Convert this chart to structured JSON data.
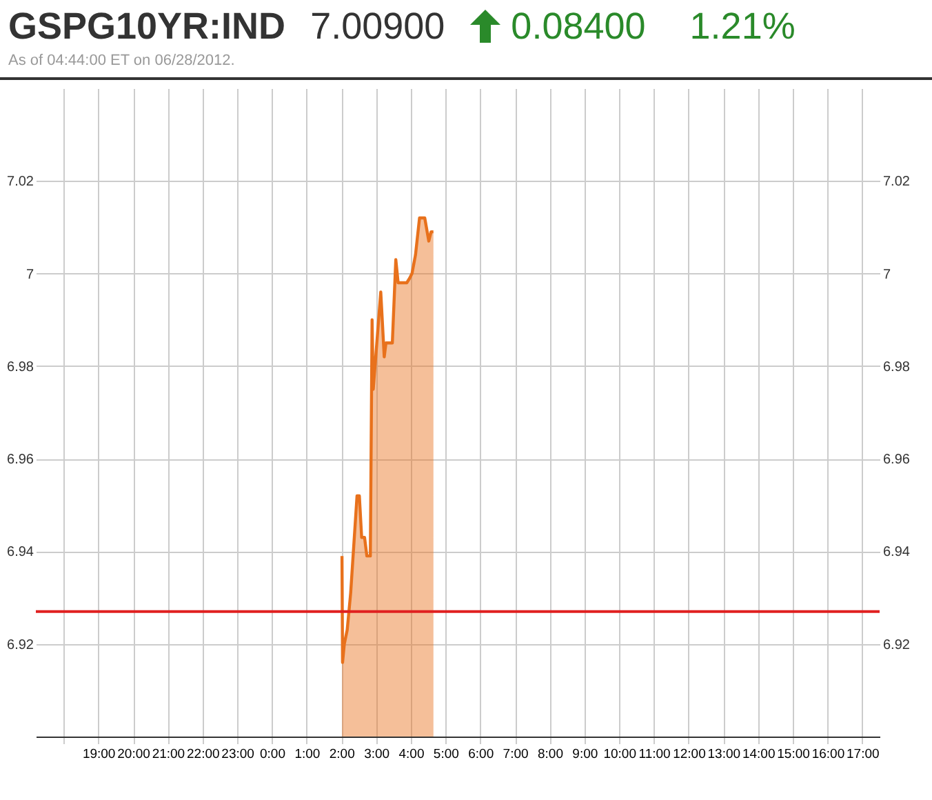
{
  "chart_data": {
    "type": "area",
    "title": "GSPG10YR:IND",
    "subtitle": "As of 04:44:00 ET on 06/28/2012.",
    "annotations": [
      "7.00900",
      "0.08400",
      "1.21%"
    ],
    "series": [
      {
        "color": "#e8711c",
        "x": [
          "2012-06-28T02:01",
          "2012-06-28T02:02",
          "2012-06-28T02:05",
          "2012-06-28T02:10",
          "2012-06-28T02:16",
          "2012-06-28T02:27",
          "2012-06-28T02:31",
          "2012-06-28T02:35",
          "2012-06-28T02:40",
          "2012-06-28T02:44",
          "2012-06-28T02:50",
          "2012-06-28T02:53",
          "2012-06-28T02:55",
          "2012-06-28T03:08",
          "2012-06-28T03:14",
          "2012-06-28T03:17",
          "2012-06-28T03:28",
          "2012-06-28T03:29",
          "2012-06-28T03:34",
          "2012-06-28T03:38",
          "2012-06-28T03:53",
          "2012-06-28T03:58",
          "2012-06-28T04:02",
          "2012-06-28T04:08",
          "2012-06-28T04:15",
          "2012-06-28T04:24",
          "2012-06-28T04:31",
          "2012-06-28T04:35",
          "2012-06-28T04:39"
        ],
        "values": [
          6.939,
          6.916,
          6.92,
          6.923,
          6.931,
          6.952,
          6.952,
          6.943,
          6.943,
          6.939,
          6.939,
          6.99,
          6.975,
          6.996,
          6.982,
          6.985,
          6.985,
          6.988,
          7.003,
          6.998,
          6.998,
          6.999,
          7.0,
          7.004,
          7.012,
          7.012,
          7.007,
          7.009,
          7.009
        ]
      }
    ],
    "xlim": [
      "2012-06-27T17:12",
      "2012-06-28T17:30"
    ],
    "xticks": [
      {
        "value": "2012-06-27T18:00",
        "label": null
      },
      {
        "value": "2012-06-27T19:00",
        "label": "19:00"
      },
      {
        "value": "2012-06-27T20:00",
        "label": "20:00"
      },
      {
        "value": "2012-06-27T21:00",
        "label": "21:00"
      },
      {
        "value": "2012-06-27T22:00",
        "label": "22:00"
      },
      {
        "value": "2012-06-27T23:00",
        "label": "23:00"
      },
      {
        "value": "2012-06-28T00:00",
        "label": "0:00"
      },
      {
        "value": "2012-06-28T01:00",
        "label": "1:00"
      },
      {
        "value": "2012-06-28T02:00",
        "label": "2:00"
      },
      {
        "value": "2012-06-28T03:00",
        "label": "3:00"
      },
      {
        "value": "2012-06-28T04:00",
        "label": "4:00"
      },
      {
        "value": "2012-06-28T05:00",
        "label": "5:00"
      },
      {
        "value": "2012-06-28T06:00",
        "label": "6:00"
      },
      {
        "value": "2012-06-28T07:00",
        "label": "7:00"
      },
      {
        "value": "2012-06-28T08:00",
        "label": "8:00"
      },
      {
        "value": "2012-06-28T09:00",
        "label": "9:00"
      },
      {
        "value": "2012-06-28T10:00",
        "label": "10:00"
      },
      {
        "value": "2012-06-28T11:00",
        "label": "11:00"
      },
      {
        "value": "2012-06-28T12:00",
        "label": "12:00"
      },
      {
        "value": "2012-06-28T13:00",
        "label": "13:00"
      },
      {
        "value": "2012-06-28T14:00",
        "label": "14:00"
      },
      {
        "value": "2012-06-28T15:00",
        "label": "15:00"
      },
      {
        "value": "2012-06-28T16:00",
        "label": "16:00"
      },
      {
        "value": "2012-06-28T17:00",
        "label": "17:00"
      }
    ],
    "ylim": [
      6.9,
      7.04
    ],
    "yticks": [
      6.92,
      6.94,
      6.96,
      6.98,
      7,
      7.02
    ],
    "y2lim": [
      6.9,
      7.04
    ],
    "y2ticks": [
      6.92,
      6.94,
      6.96,
      6.98,
      7,
      7.02
    ],
    "ref_lines": [
      {
        "axis": "y",
        "value": 6.927,
        "color": "#e02020"
      }
    ],
    "grid": true
  }
}
